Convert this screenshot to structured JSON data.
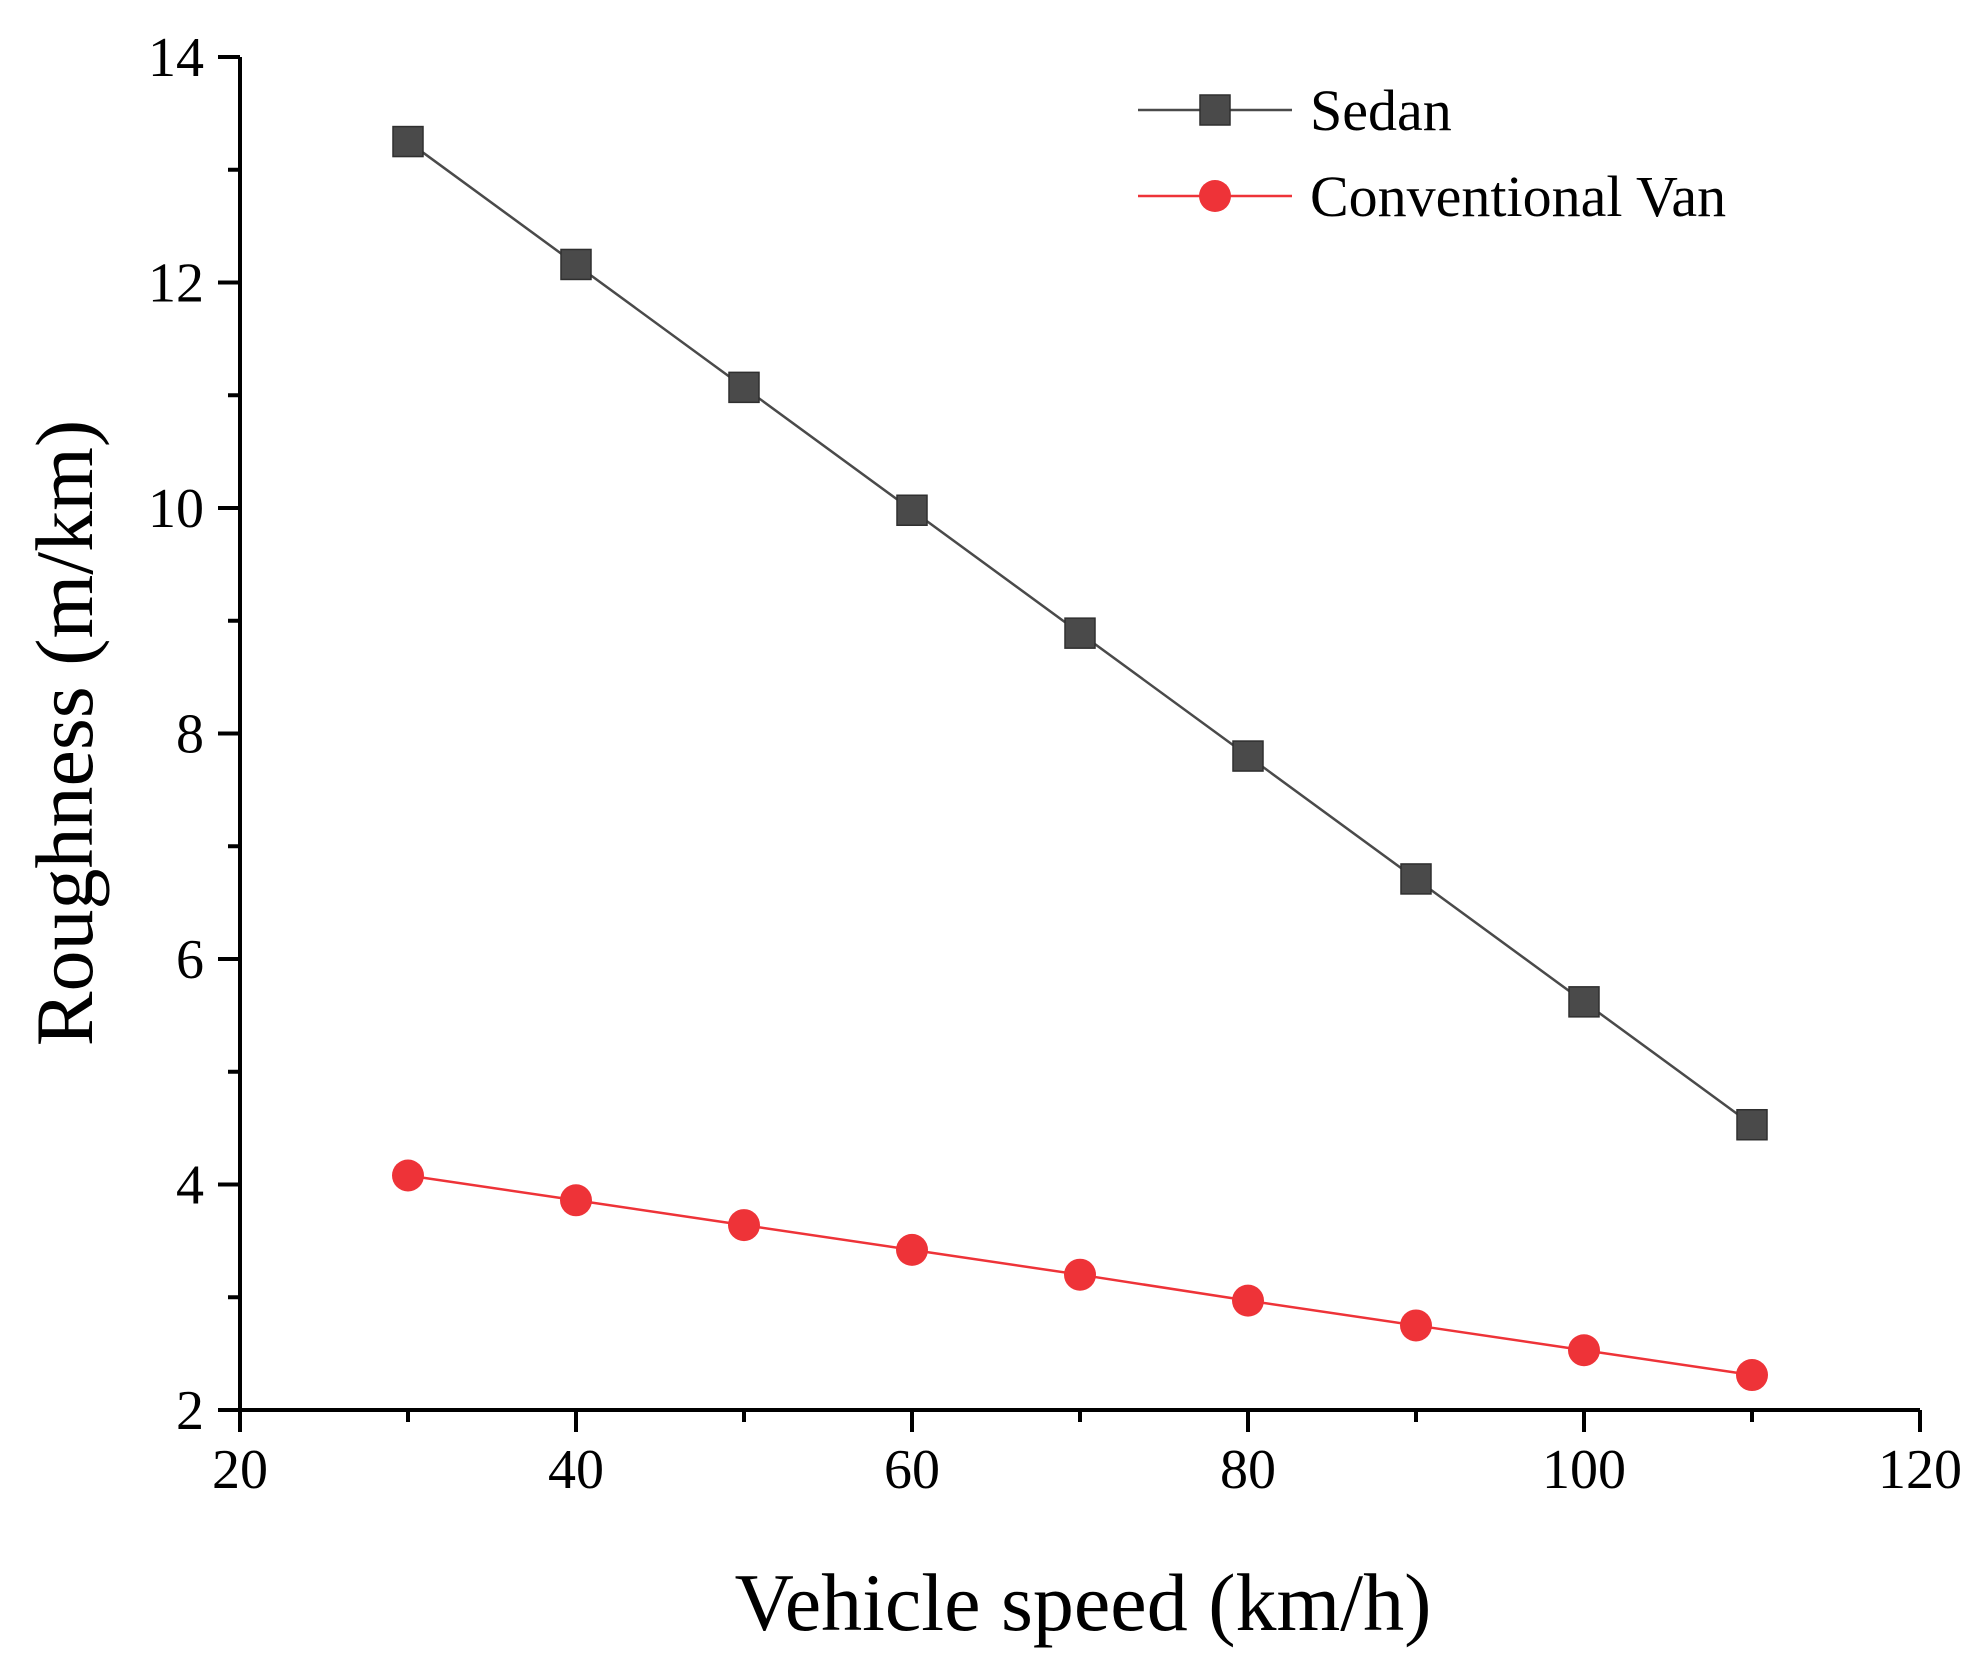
{
  "chart_data": {
    "type": "line",
    "title": "",
    "xlabel": "Vehicle speed (km/h)",
    "ylabel": "Roughness (m/km)",
    "xlim": [
      20,
      120
    ],
    "ylim": [
      2,
      14
    ],
    "xticks": [
      20,
      40,
      60,
      80,
      100,
      120
    ],
    "yticks": [
      2,
      4,
      6,
      8,
      10,
      12,
      14
    ],
    "x": [
      30,
      40,
      50,
      60,
      70,
      80,
      90,
      100,
      110
    ],
    "series": [
      {
        "name": "Sedan",
        "marker": "square",
        "color": "#4a4a4a",
        "values": [
          13.25,
          12.16,
          11.07,
          9.98,
          8.89,
          7.8,
          6.71,
          5.62,
          4.53
        ]
      },
      {
        "name": "Conventional Van",
        "marker": "circle",
        "color": "#ee3338",
        "values": [
          4.08,
          3.86,
          3.64,
          3.42,
          3.2,
          2.97,
          2.75,
          2.53,
          2.31
        ]
      }
    ],
    "legend": "top-right",
    "grid": false
  }
}
